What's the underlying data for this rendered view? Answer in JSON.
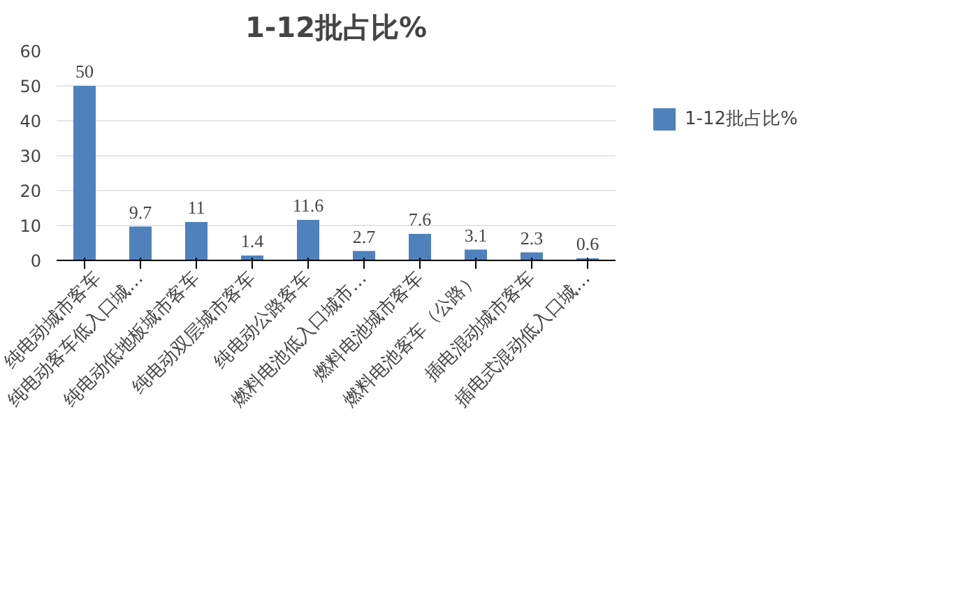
{
  "chart_data": {
    "type": "bar",
    "title": "1-12批占比%",
    "categories": [
      "纯电动城市客车",
      "纯电动客车低入口城…",
      "纯电动低地板城市客车",
      "纯电动双层城市客车",
      "纯电动公路客车",
      "燃料电池低入口城市…",
      "燃料电池城市客车",
      "燃料电池客车（公路）",
      "插电混动城市客车",
      "插电式混动低入口城…"
    ],
    "series": [
      {
        "name": "1-12批占比%",
        "color": "#4f81bd",
        "values": [
          50,
          9.7,
          11,
          1.4,
          11.6,
          2.7,
          7.6,
          3.1,
          2.3,
          0.6
        ]
      }
    ],
    "ylim": [
      0,
      60
    ],
    "yticks": [
      0,
      10,
      20,
      30,
      40,
      50,
      60
    ],
    "grid": "y",
    "legend": "right",
    "data_labels": true
  }
}
